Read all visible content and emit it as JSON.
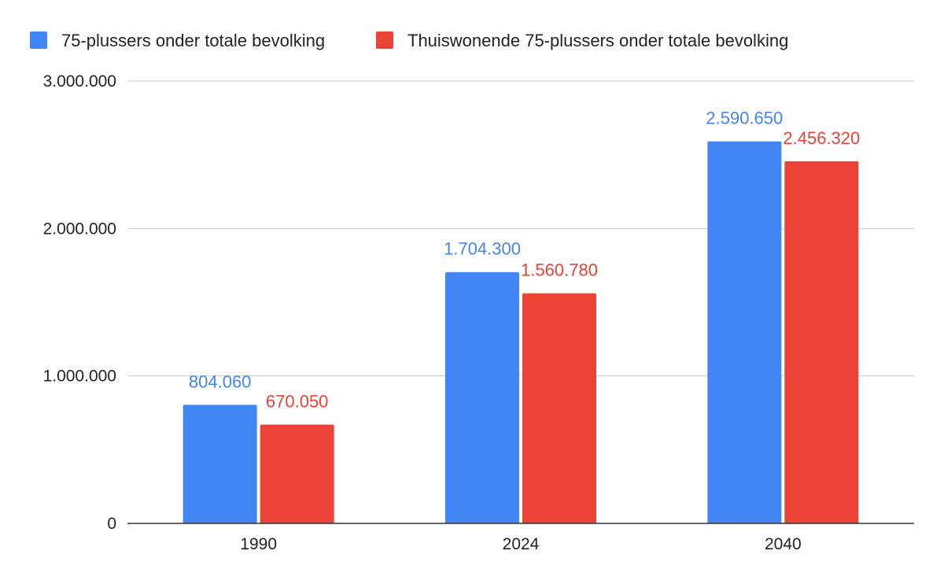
{
  "chart_data": {
    "type": "bar",
    "categories": [
      "1990",
      "2024",
      "2040"
    ],
    "series": [
      {
        "name": "75-plussers onder totale bevolking",
        "values": [
          804060,
          1704300,
          2590650
        ],
        "labels": [
          "804.060",
          "1.704.300",
          "2.590.650"
        ],
        "color": "#4285F4"
      },
      {
        "name": "Thuiswonende 75-plussers onder totale bevolking",
        "values": [
          670050,
          1560780,
          2456320
        ],
        "labels": [
          "670.050",
          "1.560.780",
          "2.456.320"
        ],
        "color": "#EA4335"
      }
    ],
    "ylim": [
      0,
      3000000
    ],
    "yticks": [
      0,
      1000000,
      2000000,
      3000000
    ],
    "ytick_labels": [
      "0",
      "1.000.000",
      "2.000.000",
      "3.000.000"
    ],
    "grid": true,
    "legend_position": "top-left",
    "title": "",
    "xlabel": "",
    "ylabel": ""
  }
}
